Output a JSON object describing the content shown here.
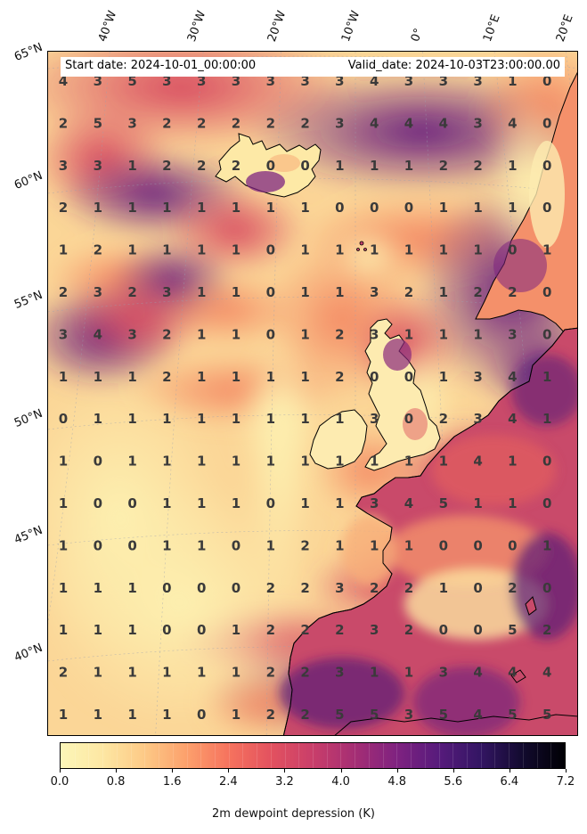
{
  "header": {
    "start_date": "Start date: 2024-10-01_00:00:00",
    "valid_date": "Valid_date: 2024-10-03T23:00:00.00"
  },
  "lon_labels": [
    "40°W",
    "30°W",
    "20°W",
    "10°W",
    "0°",
    "10°E",
    "20°E"
  ],
  "lat_labels": [
    "65°N",
    "60°N",
    "55°N",
    "50°N",
    "45°N",
    "40°N"
  ],
  "grid_values": [
    [
      "4",
      "3",
      "5",
      "3",
      "3",
      "3",
      "3",
      "3",
      "3",
      "4",
      "3",
      "3",
      "3",
      "1",
      "0"
    ],
    [
      "2",
      "5",
      "3",
      "2",
      "2",
      "2",
      "2",
      "2",
      "3",
      "4",
      "4",
      "4",
      "3",
      "4",
      "0"
    ],
    [
      "3",
      "3",
      "1",
      "2",
      "2",
      "2",
      "0",
      "0",
      "1",
      "1",
      "1",
      "2",
      "2",
      "1",
      "0"
    ],
    [
      "2",
      "1",
      "1",
      "1",
      "1",
      "1",
      "1",
      "1",
      "0",
      "0",
      "0",
      "1",
      "1",
      "1",
      "0"
    ],
    [
      "1",
      "2",
      "1",
      "1",
      "1",
      "1",
      "0",
      "1",
      "1",
      "1",
      "1",
      "1",
      "1",
      "0",
      "1"
    ],
    [
      "2",
      "3",
      "2",
      "3",
      "1",
      "1",
      "0",
      "1",
      "1",
      "3",
      "2",
      "1",
      "2",
      "2",
      "0"
    ],
    [
      "3",
      "4",
      "3",
      "2",
      "1",
      "1",
      "0",
      "1",
      "2",
      "3",
      "1",
      "1",
      "1",
      "3",
      "0"
    ],
    [
      "1",
      "1",
      "1",
      "2",
      "1",
      "1",
      "1",
      "1",
      "2",
      "0",
      "0",
      "1",
      "3",
      "4",
      "1"
    ],
    [
      "0",
      "1",
      "1",
      "1",
      "1",
      "1",
      "1",
      "1",
      "1",
      "3",
      "0",
      "2",
      "3",
      "4",
      "1"
    ],
    [
      "1",
      "0",
      "1",
      "1",
      "1",
      "1",
      "1",
      "1",
      "1",
      "1",
      "1",
      "1",
      "4",
      "1",
      "0"
    ],
    [
      "1",
      "0",
      "0",
      "1",
      "1",
      "1",
      "0",
      "1",
      "1",
      "3",
      "4",
      "5",
      "1",
      "1",
      "0"
    ],
    [
      "1",
      "0",
      "0",
      "1",
      "1",
      "0",
      "1",
      "2",
      "1",
      "1",
      "1",
      "0",
      "0",
      "0",
      "1"
    ],
    [
      "1",
      "1",
      "1",
      "0",
      "0",
      "0",
      "2",
      "2",
      "3",
      "2",
      "2",
      "1",
      "0",
      "2",
      "0"
    ],
    [
      "1",
      "1",
      "1",
      "0",
      "0",
      "1",
      "2",
      "2",
      "2",
      "3",
      "2",
      "0",
      "0",
      "5",
      "2"
    ],
    [
      "2",
      "1",
      "1",
      "1",
      "1",
      "1",
      "2",
      "2",
      "3",
      "1",
      "1",
      "3",
      "4",
      "4",
      "4"
    ],
    [
      "1",
      "1",
      "1",
      "1",
      "0",
      "1",
      "2",
      "2",
      "5",
      "5",
      "3",
      "5",
      "4",
      "5",
      "5"
    ]
  ],
  "colorbar": {
    "title": "2m dewpoint depression (K)",
    "ticks": [
      "0.0",
      "0.8",
      "1.6",
      "2.4",
      "3.2",
      "4.0",
      "4.8",
      "5.6",
      "6.4",
      "7.2"
    ],
    "range": [
      0.0,
      7.2
    ],
    "colors": [
      "#fcf6b8",
      "#fde7a3",
      "#fdc986",
      "#fca06c",
      "#f6735e",
      "#e3525f",
      "#c93e6a",
      "#a52e74",
      "#7f2280",
      "#571b7c",
      "#331563",
      "#120a2e",
      "#000004"
    ]
  }
}
